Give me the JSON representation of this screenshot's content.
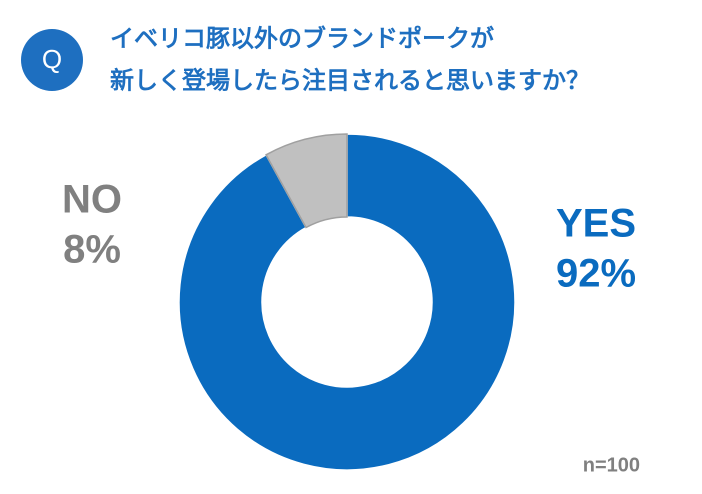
{
  "chart_data": {
    "type": "donut",
    "badge": "Q",
    "title_lines": [
      "イベリコ豚以外のブランドポークが",
      "新しく登場したら注目されると思いますか？"
    ],
    "categories": [
      "YES",
      "NO"
    ],
    "values": [
      92,
      8
    ],
    "value_labels": [
      "92%",
      "8%"
    ],
    "colors": [
      "#0a6bbf",
      "#c0c0c0"
    ],
    "label_colors": [
      "#0a6bbf",
      "#808080"
    ],
    "note": "n=100"
  }
}
